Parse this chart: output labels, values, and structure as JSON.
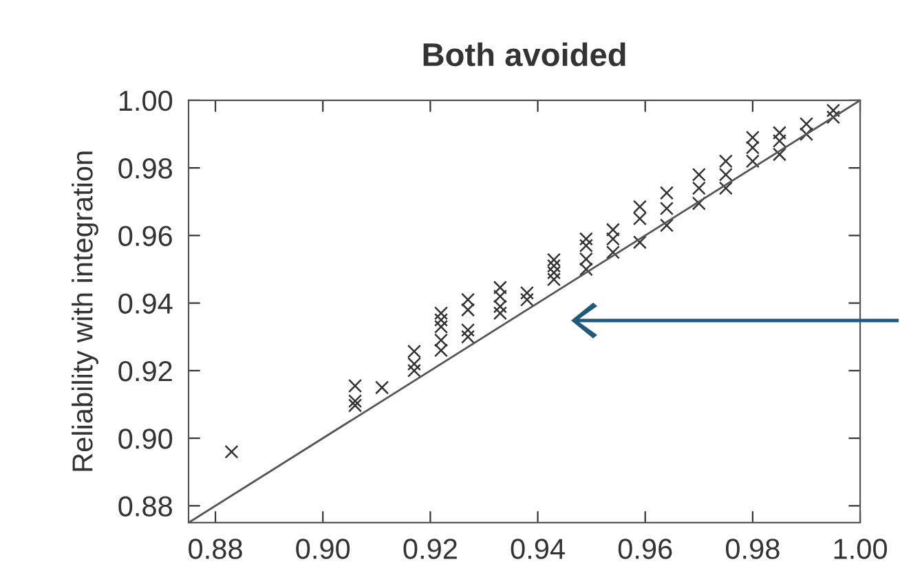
{
  "chart_data": {
    "type": "scatter",
    "title": "Both avoided",
    "ylabel": "Reliability with integration",
    "xlim": [
      0.875,
      1.0
    ],
    "ylim": [
      0.875,
      1.0
    ],
    "xticks": [
      {
        "value": 0.88,
        "label": "0.88"
      },
      {
        "value": 0.9,
        "label": "0.90"
      },
      {
        "value": 0.92,
        "label": "0.92"
      },
      {
        "value": 0.94,
        "label": "0.94"
      },
      {
        "value": 0.96,
        "label": "0.96"
      },
      {
        "value": 0.98,
        "label": "0.98"
      },
      {
        "value": 1.0,
        "label": "1.00"
      }
    ],
    "yticks": [
      {
        "value": 0.88,
        "label": "0.88"
      },
      {
        "value": 0.9,
        "label": "0.90"
      },
      {
        "value": 0.92,
        "label": "0.92"
      },
      {
        "value": 0.94,
        "label": "0.94"
      },
      {
        "value": 0.96,
        "label": "0.96"
      },
      {
        "value": 0.98,
        "label": "0.98"
      },
      {
        "value": 1.0,
        "label": "1.00"
      }
    ],
    "grid": false,
    "legend": false,
    "marker": "cross",
    "series": [
      {
        "color": "#333333",
        "x": [
          0.883,
          0.906,
          0.906,
          0.906,
          0.911,
          0.917,
          0.917,
          0.917,
          0.922,
          0.922,
          0.922,
          0.922,
          0.922,
          0.927,
          0.927,
          0.927,
          0.927,
          0.933,
          0.933,
          0.933,
          0.933,
          0.938,
          0.938,
          0.943,
          0.943,
          0.943,
          0.943,
          0.949,
          0.949,
          0.949,
          0.949,
          0.954,
          0.954,
          0.954,
          0.959,
          0.959,
          0.959,
          0.964,
          0.964,
          0.964,
          0.97,
          0.97,
          0.97,
          0.975,
          0.975,
          0.975,
          0.98,
          0.98,
          0.98,
          0.985,
          0.985,
          0.985,
          0.99,
          0.99,
          0.995,
          0.995
        ],
        "values": [
          0.896,
          0.9155,
          0.911,
          0.9097,
          0.915,
          0.9257,
          0.922,
          0.92,
          0.937,
          0.935,
          0.933,
          0.929,
          0.926,
          0.941,
          0.938,
          0.932,
          0.93,
          0.9446,
          0.942,
          0.939,
          0.937,
          0.943,
          0.941,
          0.9528,
          0.951,
          0.949,
          0.947,
          0.959,
          0.957,
          0.953,
          0.95,
          0.9617,
          0.959,
          0.955,
          0.9685,
          0.965,
          0.958,
          0.9726,
          0.968,
          0.963,
          0.978,
          0.974,
          0.9695,
          0.982,
          0.978,
          0.974,
          0.989,
          0.986,
          0.982,
          0.9904,
          0.988,
          0.984,
          0.993,
          0.99,
          0.997,
          0.995
        ]
      },
      {
        "type": "line",
        "marker": "none",
        "color": "#555555",
        "x": [
          0.875,
          1.0
        ],
        "values": [
          0.875,
          1.0
        ]
      }
    ]
  }
}
